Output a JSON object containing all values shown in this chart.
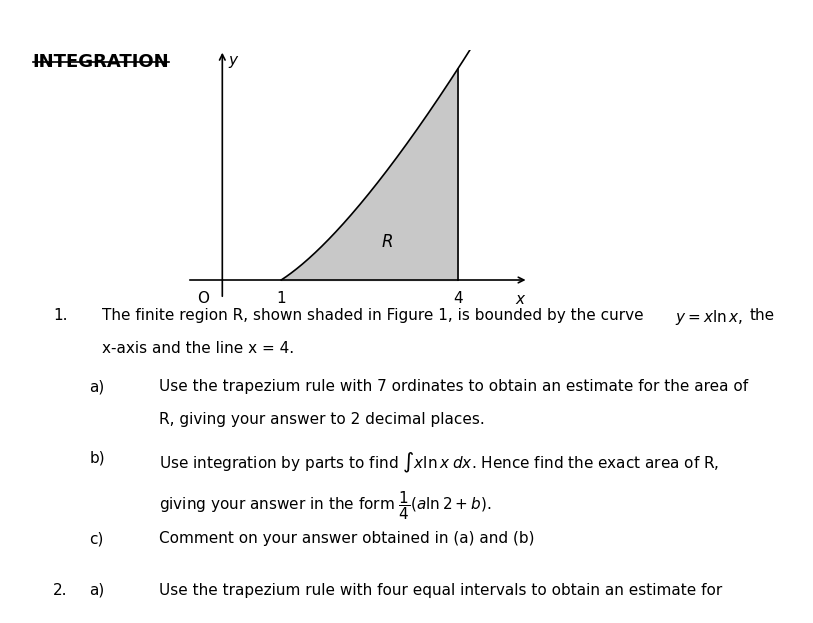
{
  "title": "INTEGRATION",
  "graph": {
    "x_label": "x",
    "y_label": "y",
    "origin_label": "O",
    "shade_color": "#c8c8c8",
    "curve_color": "#000000",
    "line_color": "#000000"
  },
  "text": {
    "q1_num": "1.",
    "q1_line1": "The finite region R, shown shaded in Figure 1, is bounded by the curve",
    "q1_formula": "$y = x\\ln x$,",
    "q1_the": "the",
    "q1_line2": "x-axis and the line x = 4.",
    "a_label": "a)",
    "a_line1": "Use the trapezium rule with 7 ordinates to obtain an estimate for the area of",
    "a_line2": "R, giving your answer to 2 decimal places.",
    "b_label": "b)",
    "b_line1": "Use integration by parts to find $\\int x\\ln x\\;dx$. Hence find the exact area of R,",
    "b_line2": "giving your answer in the form $\\dfrac{1}{4}(a\\ln 2 + b)$.",
    "c_label": "c)",
    "c_line1": "Comment on your answer obtained in (a) and (b)",
    "q2_num": "2.",
    "q2a_label": "a)",
    "q2a_line1": "Use the trapezium rule with four equal intervals to obtain an estimate for"
  },
  "bg_color": "#ffffff",
  "fontsize": 11,
  "title_fontsize": 13
}
